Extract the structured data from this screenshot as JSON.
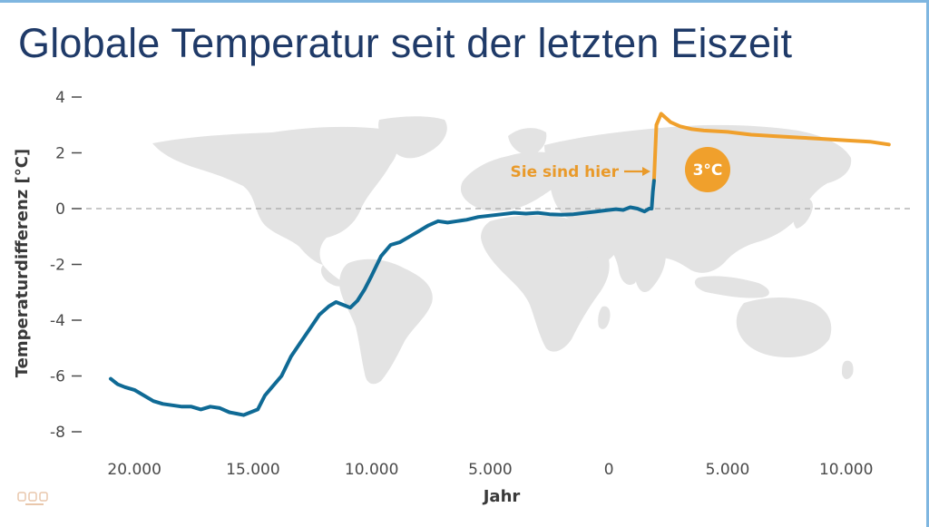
{
  "slide": {
    "title": "Globale Temperatur seit der letzten Eiszeit"
  },
  "colors": {
    "historical": "#0f6a95",
    "projection": "#f0a02c",
    "annotation": "#e99a2a",
    "title": "#1f3a68",
    "map": "#e3e3e3"
  },
  "chart_data": {
    "type": "line",
    "ylabel": "Temperaturdifferenz [°C]",
    "xlabel": "Jahr",
    "ylim": [
      -8,
      4
    ],
    "xlim": [
      -21000,
      12000
    ],
    "y_ticks": [
      {
        "value": 4,
        "label": "4"
      },
      {
        "value": 2,
        "label": "2"
      },
      {
        "value": 0,
        "label": "0"
      },
      {
        "value": -2,
        "label": "-2"
      },
      {
        "value": -4,
        "label": "-4"
      },
      {
        "value": -6,
        "label": "-6"
      },
      {
        "value": -8,
        "label": "-8"
      }
    ],
    "x_ticks": [
      {
        "value": -20000,
        "label": "20.000"
      },
      {
        "value": -15000,
        "label": "15.000"
      },
      {
        "value": -10000,
        "label": "10.000"
      },
      {
        "value": -5000,
        "label": "5.000"
      },
      {
        "value": 0,
        "label": "0"
      },
      {
        "value": 5000,
        "label": "5.000"
      },
      {
        "value": 10000,
        "label": "10.000"
      }
    ],
    "zero_line": "dashed",
    "series": [
      {
        "role": "historical",
        "x": [
          -21000,
          -20700,
          -20400,
          -20000,
          -19600,
          -19200,
          -18800,
          -18400,
          -18000,
          -17600,
          -17200,
          -16800,
          -16400,
          -16000,
          -15700,
          -15400,
          -15100,
          -14800,
          -14500,
          -14200,
          -13800,
          -13400,
          -13000,
          -12600,
          -12200,
          -11800,
          -11500,
          -11200,
          -10900,
          -10600,
          -10300,
          -10000,
          -9600,
          -9200,
          -8800,
          -8400,
          -8000,
          -7600,
          -7200,
          -6800,
          -6400,
          -6000,
          -5500,
          -5000,
          -4500,
          -4000,
          -3500,
          -3000,
          -2500,
          -2000,
          -1500,
          -1000,
          -500,
          0,
          300,
          600,
          900,
          1200,
          1500,
          1700,
          1800,
          1850,
          1900
        ],
        "y": [
          -6.1,
          -6.3,
          -6.4,
          -6.5,
          -6.7,
          -6.9,
          -7.0,
          -7.05,
          -7.1,
          -7.1,
          -7.2,
          -7.1,
          -7.15,
          -7.3,
          -7.35,
          -7.4,
          -7.3,
          -7.2,
          -6.7,
          -6.4,
          -6.0,
          -5.3,
          -4.8,
          -4.3,
          -3.8,
          -3.5,
          -3.35,
          -3.45,
          -3.55,
          -3.3,
          -2.9,
          -2.4,
          -1.7,
          -1.3,
          -1.2,
          -1.0,
          -0.8,
          -0.6,
          -0.45,
          -0.5,
          -0.45,
          -0.4,
          -0.3,
          -0.25,
          -0.2,
          -0.15,
          -0.18,
          -0.15,
          -0.2,
          -0.22,
          -0.2,
          -0.15,
          -0.1,
          -0.05,
          -0.02,
          -0.05,
          0.05,
          0.0,
          -0.1,
          0.0,
          0.0,
          0.6,
          1.0
        ]
      },
      {
        "role": "projection",
        "x": [
          1900,
          2000,
          2200,
          2600,
          3000,
          3500,
          4000,
          5000,
          6000,
          7000,
          8000,
          9000,
          10000,
          11000,
          11800
        ],
        "y": [
          1.0,
          3.0,
          3.4,
          3.1,
          2.95,
          2.85,
          2.8,
          2.75,
          2.65,
          2.6,
          2.55,
          2.5,
          2.45,
          2.4,
          2.3
        ]
      }
    ],
    "annotations": {
      "you_are_here": "Sie sind hier",
      "badge": "3°C"
    }
  }
}
